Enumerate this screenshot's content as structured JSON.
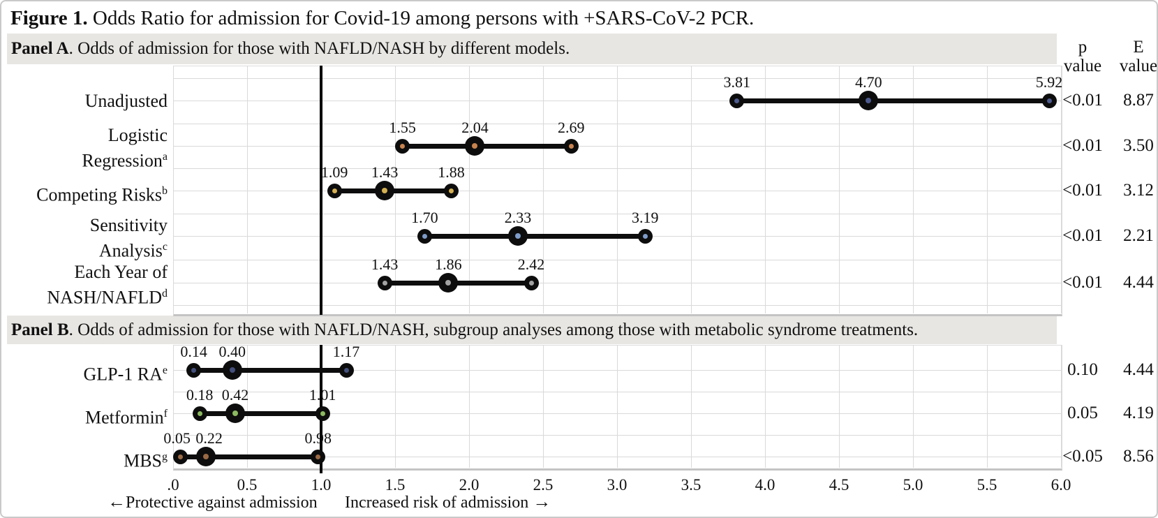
{
  "title": {
    "bold": "Figure 1.",
    "rest": " Odds Ratio for admission for Covid-19 among persons with +SARS-CoV-2 PCR."
  },
  "columns": {
    "p_header": [
      "p",
      "value"
    ],
    "e_header": [
      "E",
      "value"
    ]
  },
  "chart_data": {
    "type": "dumbbell-forest",
    "x_axis": {
      "min": 0,
      "max": 6,
      "step": 0.5,
      "tick_labels": [
        ".0",
        "0.5",
        "1.0",
        "1.5",
        "2.0",
        "2.5",
        "3.0",
        "3.5",
        "4.0",
        "4.5",
        "5.0",
        "5.5",
        "6.0"
      ],
      "reference_line": 1.0,
      "grid": true
    },
    "annotations": {
      "left": "←Protective against admission",
      "right": "Increased risk of admission →"
    },
    "panels": [
      {
        "label": "Panel A",
        "description": ". Odds of admission for those with NAFLD/NASH by different models.",
        "rows": [
          {
            "label_lines": [
              "Unadjusted"
            ],
            "sup": "",
            "low": 3.81,
            "mid": 4.7,
            "high": 5.92,
            "labels": [
              "3.81",
              "4.70",
              "5.92"
            ],
            "p_value": "<0.01",
            "e_value": "8.87",
            "marker_color": "#4e5b8e"
          },
          {
            "label_lines": [
              "Logistic",
              "Regression"
            ],
            "sup": "a",
            "low": 1.55,
            "mid": 2.04,
            "high": 2.69,
            "labels": [
              "1.55",
              "2.04",
              "2.69"
            ],
            "p_value": "<0.01",
            "e_value": "3.50",
            "marker_color": "#c8834f"
          },
          {
            "label_lines": [
              "Competing Risks"
            ],
            "sup": "b",
            "low": 1.09,
            "mid": 1.43,
            "high": 1.88,
            "labels": [
              "1.09",
              "1.43",
              "1.88"
            ],
            "p_value": "<0.01",
            "e_value": "3.12",
            "marker_color": "#d4b052"
          },
          {
            "label_lines": [
              "Sensitivity",
              "Analysis"
            ],
            "sup": "c",
            "low": 1.7,
            "mid": 2.33,
            "high": 3.19,
            "labels": [
              "1.70",
              "2.33",
              "3.19"
            ],
            "p_value": "<0.01",
            "e_value": "2.21",
            "marker_color": "#7e9cc9"
          },
          {
            "label_lines": [
              "Each Year of",
              "NASH/NAFLD"
            ],
            "sup": "d",
            "low": 1.43,
            "mid": 1.86,
            "high": 2.42,
            "labels": [
              "1.43",
              "1.86",
              "2.42"
            ],
            "p_value": "<0.01",
            "e_value": "4.44",
            "marker_color": "#a3a3a3"
          }
        ]
      },
      {
        "label": "Panel B",
        "description": ". Odds of admission for those with NAFLD/NASH, subgroup analyses among those with metabolic syndrome treatments.",
        "rows": [
          {
            "label_lines": [
              "GLP-1 RA"
            ],
            "sup": "e",
            "low": 0.14,
            "mid": 0.4,
            "high": 1.17,
            "labels": [
              "0.14",
              "0.40",
              "1.17"
            ],
            "p_value": "0.10",
            "e_value": "4.44",
            "marker_color": "#44507c"
          },
          {
            "label_lines": [
              "Metformin"
            ],
            "sup": "f",
            "low": 0.18,
            "mid": 0.42,
            "high": 1.01,
            "labels": [
              "0.18",
              "0.42",
              "1.01"
            ],
            "p_value": "0.05",
            "e_value": "4.19",
            "marker_color": "#8cba60"
          },
          {
            "label_lines": [
              "MBS"
            ],
            "sup": "g",
            "low": 0.05,
            "mid": 0.22,
            "high": 0.98,
            "labels": [
              "0.05",
              "0.22",
              "0.98"
            ],
            "p_value": "<0.05",
            "e_value": "8.56",
            "marker_color": "#9a6a45"
          }
        ]
      }
    ],
    "colors": {
      "dumbbell_line": "#0d0d0d",
      "gridline": "#d9d9d9",
      "band_bg": "#e8e6e3",
      "reference_line": "#000000"
    }
  }
}
